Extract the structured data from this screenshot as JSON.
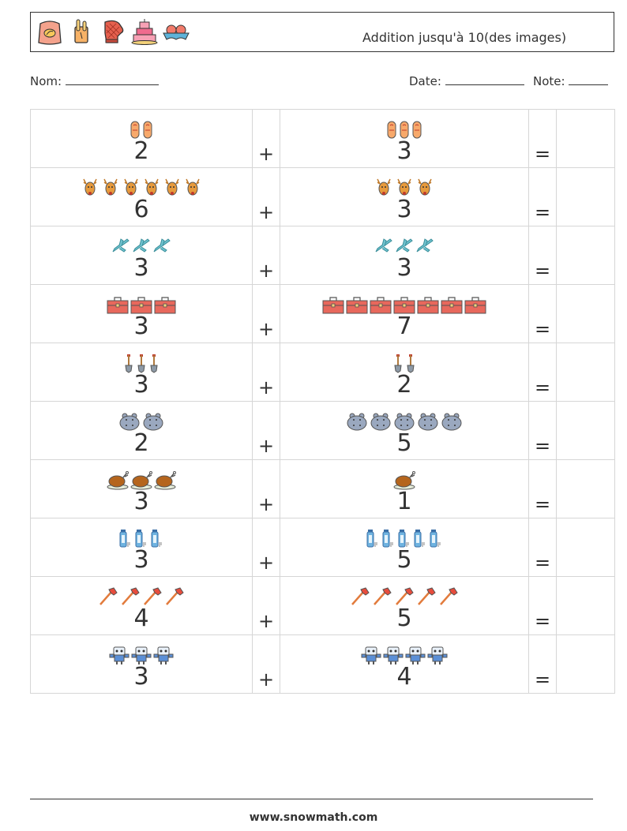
{
  "header": {
    "title": "Addition jusqu'à 10(des images)",
    "icons": [
      "flour-sack-icon",
      "baguette-icon",
      "oven-mitt-icon",
      "layer-cake-icon",
      "egg-tray-icon"
    ]
  },
  "info": {
    "name_label": "Nom:",
    "date_label": "Date:",
    "grade_label": "Note:"
  },
  "operator_plus": "+",
  "operator_equals": "=",
  "rows": [
    {
      "a": "2",
      "b": "3",
      "icon": "sausage-icon"
    },
    {
      "a": "6",
      "b": "3",
      "icon": "reindeer-icon"
    },
    {
      "a": "3",
      "b": "3",
      "icon": "airplane-icon"
    },
    {
      "a": "3",
      "b": "7",
      "icon": "toolbox-icon"
    },
    {
      "a": "3",
      "b": "2",
      "icon": "shovel-icon"
    },
    {
      "a": "2",
      "b": "5",
      "icon": "hippo-icon"
    },
    {
      "a": "3",
      "b": "1",
      "icon": "roast-turkey-icon"
    },
    {
      "a": "3",
      "b": "5",
      "icon": "water-bottle-icon"
    },
    {
      "a": "4",
      "b": "5",
      "icon": "fire-axe-icon"
    },
    {
      "a": "3",
      "b": "4",
      "icon": "robot-icon"
    }
  ],
  "footer": {
    "text": "www.snowmath.com"
  }
}
